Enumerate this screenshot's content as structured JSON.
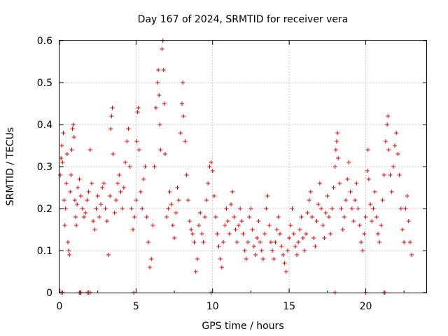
{
  "chart_data": {
    "type": "scatter",
    "title": "Day 167 of 2024, SRMTID for receiver vera",
    "xlabel": "GPS time / hours",
    "ylabel": "SRMTID / TECUs",
    "xlim": [
      0,
      24
    ],
    "ylim": [
      0,
      0.6
    ],
    "x_ticks": [
      0,
      5,
      10,
      15,
      20
    ],
    "x_tick_labels": [
      "0",
      "5",
      "10",
      "15",
      "20"
    ],
    "y_ticks": [
      0,
      0.1,
      0.2,
      0.3,
      0.4,
      0.5,
      0.6
    ],
    "y_tick_labels": [
      "0",
      "0.1",
      "0.2",
      "0.3",
      "0.4",
      "0.5",
      "0.6"
    ],
    "grid": true,
    "marker": "+",
    "color": "#e00000",
    "series": [
      {
        "name": "SRMTID",
        "points": [
          [
            0.05,
            0.28
          ],
          [
            0.1,
            0.32
          ],
          [
            0.15,
            0.35
          ],
          [
            0.2,
            0.31
          ],
          [
            0.25,
            0.38
          ],
          [
            0.3,
            0.22
          ],
          [
            0.35,
            0.16
          ],
          [
            0.4,
            0.2
          ],
          [
            0.45,
            0.26
          ],
          [
            0.5,
            0.33
          ],
          [
            0.55,
            0.12
          ],
          [
            0.6,
            0.1
          ],
          [
            0.65,
            0.09
          ],
          [
            0.7,
            0.24
          ],
          [
            0.75,
            0.28
          ],
          [
            0.8,
            0.34
          ],
          [
            0.85,
            0.39
          ],
          [
            0.9,
            0.4
          ],
          [
            0.95,
            0.37
          ],
          [
            1.0,
            0.22
          ],
          [
            1.05,
            0.18
          ],
          [
            1.1,
            0.16
          ],
          [
            1.15,
            0.21
          ],
          [
            1.2,
            0.25
          ],
          [
            1.3,
            0.27
          ],
          [
            1.4,
            0.23
          ],
          [
            1.5,
            0.2
          ],
          [
            1.6,
            0.18
          ],
          [
            1.7,
            0.19
          ],
          [
            1.8,
            0.22
          ],
          [
            1.9,
            0.24
          ],
          [
            2.0,
            0.34
          ],
          [
            2.1,
            0.26
          ],
          [
            2.2,
            0.17
          ],
          [
            2.3,
            0.15
          ],
          [
            2.4,
            0.2
          ],
          [
            2.5,
            0.23
          ],
          [
            2.6,
            0.18
          ],
          [
            2.7,
            0.21
          ],
          [
            2.8,
            0.25
          ],
          [
            2.9,
            0.26
          ],
          [
            3.0,
            0.2
          ],
          [
            3.1,
            0.17
          ],
          [
            3.2,
            0.09
          ],
          [
            3.3,
            0.23
          ],
          [
            3.35,
            0.39
          ],
          [
            3.4,
            0.42
          ],
          [
            3.45,
            0.44
          ],
          [
            3.5,
            0.33
          ],
          [
            3.6,
            0.19
          ],
          [
            3.7,
            0.22
          ],
          [
            3.8,
            0.26
          ],
          [
            3.9,
            0.28
          ],
          [
            4.0,
            0.24
          ],
          [
            4.1,
            0.2
          ],
          [
            4.2,
            0.25
          ],
          [
            4.3,
            0.31
          ],
          [
            4.4,
            0.36
          ],
          [
            4.5,
            0.39
          ],
          [
            4.6,
            0.3
          ],
          [
            4.7,
            0.2
          ],
          [
            4.8,
            0.15
          ],
          [
            4.9,
            0.18
          ],
          [
            5.0,
            0.22
          ],
          [
            5.05,
            0.36
          ],
          [
            5.1,
            0.43
          ],
          [
            5.15,
            0.44
          ],
          [
            5.2,
            0.34
          ],
          [
            5.3,
            0.24
          ],
          [
            5.4,
            0.2
          ],
          [
            5.5,
            0.27
          ],
          [
            5.6,
            0.3
          ],
          [
            5.7,
            0.18
          ],
          [
            5.8,
            0.12
          ],
          [
            5.9,
            0.06
          ],
          [
            6.0,
            0.08
          ],
          [
            6.1,
            0.16
          ],
          [
            6.2,
            0.3
          ],
          [
            6.3,
            0.44
          ],
          [
            6.4,
            0.5
          ],
          [
            6.45,
            0.53
          ],
          [
            6.5,
            0.47
          ],
          [
            6.55,
            0.4
          ],
          [
            6.6,
            0.34
          ],
          [
            6.7,
            0.58
          ],
          [
            6.75,
            0.6
          ],
          [
            6.8,
            0.53
          ],
          [
            6.85,
            0.45
          ],
          [
            6.9,
            0.33
          ],
          [
            7.0,
            0.18
          ],
          [
            7.1,
            0.2
          ],
          [
            7.2,
            0.24
          ],
          [
            7.3,
            0.21
          ],
          [
            7.4,
            0.16
          ],
          [
            7.5,
            0.13
          ],
          [
            7.6,
            0.19
          ],
          [
            7.7,
            0.25
          ],
          [
            7.8,
            0.22
          ],
          [
            7.9,
            0.38
          ],
          [
            8.0,
            0.45
          ],
          [
            8.05,
            0.5
          ],
          [
            8.1,
            0.42
          ],
          [
            8.2,
            0.36
          ],
          [
            8.3,
            0.28
          ],
          [
            8.4,
            0.22
          ],
          [
            8.5,
            0.17
          ],
          [
            8.6,
            0.15
          ],
          [
            8.7,
            0.14
          ],
          [
            8.8,
            0.12
          ],
          [
            8.9,
            0.05
          ],
          [
            9.0,
            0.08
          ],
          [
            9.1,
            0.16
          ],
          [
            9.2,
            0.19
          ],
          [
            9.3,
            0.14
          ],
          [
            9.4,
            0.12
          ],
          [
            9.5,
            0.18
          ],
          [
            9.6,
            0.22
          ],
          [
            9.7,
            0.26
          ],
          [
            9.8,
            0.3
          ],
          [
            9.9,
            0.31
          ],
          [
            10.0,
            0.29
          ],
          [
            10.1,
            0.23
          ],
          [
            10.2,
            0.18
          ],
          [
            10.3,
            0.14
          ],
          [
            10.4,
            0.11
          ],
          [
            10.5,
            0.08
          ],
          [
            10.6,
            0.06
          ],
          [
            10.7,
            0.12
          ],
          [
            10.8,
            0.16
          ],
          [
            10.9,
            0.2
          ],
          [
            11.0,
            0.17
          ],
          [
            11.1,
            0.14
          ],
          [
            11.2,
            0.21
          ],
          [
            11.3,
            0.24
          ],
          [
            11.4,
            0.18
          ],
          [
            11.5,
            0.15
          ],
          [
            11.6,
            0.12
          ],
          [
            11.7,
            0.16
          ],
          [
            11.8,
            0.2
          ],
          [
            11.9,
            0.17
          ],
          [
            12.0,
            0.14
          ],
          [
            12.1,
            0.1
          ],
          [
            12.2,
            0.08
          ],
          [
            12.3,
            0.12
          ],
          [
            12.4,
            0.18
          ],
          [
            12.5,
            0.2
          ],
          [
            12.6,
            0.15
          ],
          [
            12.7,
            0.11
          ],
          [
            12.8,
            0.09
          ],
          [
            12.9,
            0.13
          ],
          [
            13.0,
            0.17
          ],
          [
            13.1,
            0.12
          ],
          [
            13.2,
            0.1
          ],
          [
            13.3,
            0.08
          ],
          [
            13.4,
            0.14
          ],
          [
            13.5,
            0.2
          ],
          [
            13.6,
            0.23
          ],
          [
            13.7,
            0.16
          ],
          [
            13.8,
            0.12
          ],
          [
            13.9,
            0.1
          ],
          [
            14.0,
            0.08
          ],
          [
            14.1,
            0.12
          ],
          [
            14.2,
            0.15
          ],
          [
            14.3,
            0.18
          ],
          [
            14.4,
            0.14
          ],
          [
            14.5,
            0.11
          ],
          [
            14.6,
            0.09
          ],
          [
            14.7,
            0.07
          ],
          [
            14.8,
            0.05
          ],
          [
            14.9,
            0.1
          ],
          [
            15.0,
            0.13
          ],
          [
            15.1,
            0.16
          ],
          [
            15.2,
            0.2
          ],
          [
            15.3,
            0.14
          ],
          [
            15.4,
            0.11
          ],
          [
            15.5,
            0.09
          ],
          [
            15.6,
            0.12
          ],
          [
            15.7,
            0.15
          ],
          [
            15.8,
            0.18
          ],
          [
            15.9,
            0.13
          ],
          [
            16.0,
            0.1
          ],
          [
            16.1,
            0.14
          ],
          [
            16.2,
            0.19
          ],
          [
            16.3,
            0.22
          ],
          [
            16.4,
            0.24
          ],
          [
            16.5,
            0.18
          ],
          [
            16.6,
            0.13
          ],
          [
            16.7,
            0.11
          ],
          [
            16.8,
            0.17
          ],
          [
            16.9,
            0.21
          ],
          [
            17.0,
            0.26
          ],
          [
            17.1,
            0.2
          ],
          [
            17.2,
            0.16
          ],
          [
            17.3,
            0.13
          ],
          [
            17.4,
            0.19
          ],
          [
            17.5,
            0.23
          ],
          [
            17.6,
            0.18
          ],
          [
            17.7,
            0.14
          ],
          [
            17.8,
            0.2
          ],
          [
            17.9,
            0.25
          ],
          [
            18.0,
            0.3
          ],
          [
            18.05,
            0.34
          ],
          [
            18.1,
            0.36
          ],
          [
            18.15,
            0.38
          ],
          [
            18.2,
            0.32
          ],
          [
            18.3,
            0.26
          ],
          [
            18.4,
            0.2
          ],
          [
            18.5,
            0.15
          ],
          [
            18.6,
            0.18
          ],
          [
            18.7,
            0.22
          ],
          [
            18.8,
            0.27
          ],
          [
            18.9,
            0.31
          ],
          [
            19.0,
            0.24
          ],
          [
            19.1,
            0.2
          ],
          [
            19.2,
            0.17
          ],
          [
            19.3,
            0.22
          ],
          [
            19.4,
            0.26
          ],
          [
            19.5,
            0.2
          ],
          [
            19.6,
            0.16
          ],
          [
            19.7,
            0.12
          ],
          [
            19.8,
            0.1
          ],
          [
            19.9,
            0.14
          ],
          [
            20.0,
            0.18
          ],
          [
            20.1,
            0.29
          ],
          [
            20.15,
            0.34
          ],
          [
            20.2,
            0.27
          ],
          [
            20.3,
            0.21
          ],
          [
            20.4,
            0.17
          ],
          [
            20.5,
            0.2
          ],
          [
            20.6,
            0.24
          ],
          [
            20.7,
            0.18
          ],
          [
            20.8,
            0.14
          ],
          [
            20.9,
            0.12
          ],
          [
            21.0,
            0.16
          ],
          [
            21.1,
            0.22
          ],
          [
            21.2,
            0.28
          ],
          [
            21.3,
            0.36
          ],
          [
            21.4,
            0.4
          ],
          [
            21.45,
            0.42
          ],
          [
            21.5,
            0.34
          ],
          [
            21.6,
            0.28
          ],
          [
            21.7,
            0.24
          ],
          [
            21.8,
            0.3
          ],
          [
            21.9,
            0.35
          ],
          [
            22.0,
            0.38
          ],
          [
            22.1,
            0.33
          ],
          [
            22.2,
            0.28
          ],
          [
            22.3,
            0.2
          ],
          [
            22.4,
            0.15
          ],
          [
            22.5,
            0.12
          ],
          [
            22.6,
            0.2
          ],
          [
            22.7,
            0.23
          ],
          [
            22.8,
            0.17
          ],
          [
            22.9,
            0.12
          ],
          [
            23.0,
            0.09
          ]
        ]
      }
    ],
    "zero_points_x": [
      0.1,
      0.2,
      1.3,
      1.35,
      1.4,
      1.8,
      1.9,
      2.0,
      4.85,
      9.9,
      18.0,
      20.0,
      21.2,
      21.25
    ]
  }
}
